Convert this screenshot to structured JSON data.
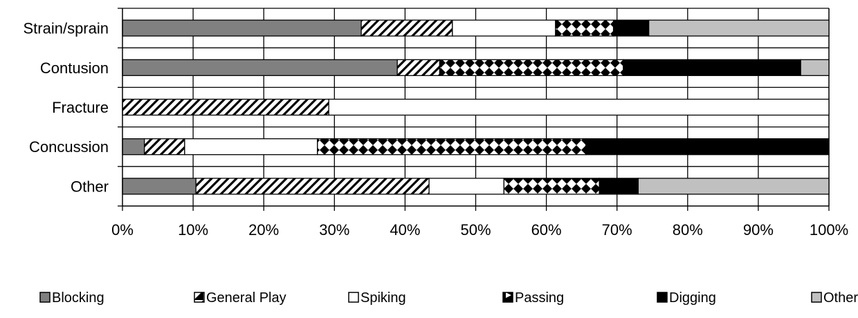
{
  "chart_data": {
    "type": "bar",
    "orientation": "horizontal",
    "stacked": "percent",
    "title": "",
    "xlabel": "",
    "ylabel": "",
    "categories": [
      "Strain/sprain",
      "Contusion",
      "Fracture",
      "Concussion",
      "Other"
    ],
    "series": [
      {
        "name": "Blocking",
        "color": "#808080",
        "pattern": "solid",
        "values": [
          33.8,
          38.9,
          0,
          3.1,
          10.4
        ]
      },
      {
        "name": "General Play",
        "color": "#ffffff",
        "pattern": "diagonal",
        "values": [
          12.9,
          6.0,
          29.2,
          5.7,
          33.0
        ]
      },
      {
        "name": "Spiking",
        "color": "#ffffff",
        "pattern": "solid",
        "values": [
          14.6,
          0,
          70.8,
          18.8,
          10.6
        ]
      },
      {
        "name": "Passing",
        "color": "#ffffff",
        "pattern": "diamond",
        "values": [
          8.2,
          26.0,
          0,
          38.0,
          13.5
        ]
      },
      {
        "name": "Digging",
        "color": "#000000",
        "pattern": "solid",
        "values": [
          5.0,
          25.1,
          0,
          34.4,
          5.5
        ]
      },
      {
        "name": "Other",
        "color": "#c0c0c0",
        "pattern": "solid",
        "values": [
          25.5,
          4.0,
          0,
          0,
          27.0
        ]
      }
    ],
    "xlim": [
      0,
      100
    ],
    "x_ticks": [
      "0%",
      "10%",
      "20%",
      "30%",
      "40%",
      "50%",
      "60%",
      "70%",
      "80%",
      "90%",
      "100%"
    ],
    "grid": "vertical",
    "legend_position": "bottom"
  }
}
